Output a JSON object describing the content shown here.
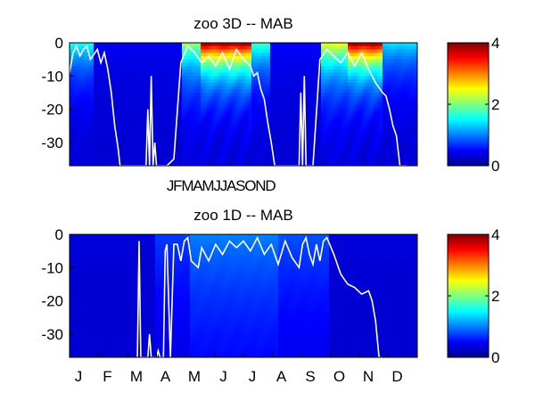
{
  "chart_data": [
    {
      "type": "heatmap",
      "title": "zoo 3D   -- MAB",
      "xlabel": "",
      "ylabel": "",
      "x_tick_labels": [
        "JFMAMJJASOND"
      ],
      "y_ticks": [
        0,
        -10,
        -20,
        -30
      ],
      "ylim": [
        -37,
        0
      ],
      "x_span_years": 2,
      "colorbar": {
        "range": [
          0,
          4
        ],
        "ticks": [
          0,
          2,
          4
        ],
        "colormap": "jet"
      },
      "heat_bands": [
        {
          "start": 0.0,
          "end": 0.07,
          "surface": 1.4,
          "decay_depth": 9
        },
        {
          "start": 0.07,
          "end": 0.32,
          "surface": 0.15,
          "decay_depth": 12
        },
        {
          "start": 0.32,
          "end": 0.38,
          "surface": 2.0,
          "decay_depth": 10
        },
        {
          "start": 0.38,
          "end": 0.52,
          "surface": 4.0,
          "decay_depth": 8
        },
        {
          "start": 0.52,
          "end": 0.58,
          "surface": 1.6,
          "decay_depth": 9
        },
        {
          "start": 0.58,
          "end": 0.72,
          "surface": 0.2,
          "decay_depth": 12
        },
        {
          "start": 0.72,
          "end": 0.8,
          "surface": 2.4,
          "decay_depth": 10
        },
        {
          "start": 0.8,
          "end": 0.9,
          "surface": 4.0,
          "decay_depth": 8
        },
        {
          "start": 0.9,
          "end": 1.0,
          "surface": 1.2,
          "decay_depth": 9
        }
      ],
      "line_series": {
        "name": "",
        "color": "#ffffff",
        "x": [
          0.0,
          0.01,
          0.02,
          0.03,
          0.04,
          0.05,
          0.06,
          0.08,
          0.09,
          0.1,
          0.11,
          0.12,
          0.13,
          0.14,
          0.145,
          0.15,
          0.22,
          0.225,
          0.23,
          0.235,
          0.24,
          0.245,
          0.25,
          0.26,
          0.27,
          0.28,
          0.3,
          0.32,
          0.34,
          0.36,
          0.38,
          0.4,
          0.42,
          0.44,
          0.46,
          0.48,
          0.5,
          0.52,
          0.53,
          0.54,
          0.55,
          0.56,
          0.57,
          0.58,
          0.59,
          0.6,
          0.61,
          0.62,
          0.63,
          0.64,
          0.65,
          0.66,
          0.665,
          0.67,
          0.675,
          0.68,
          0.69,
          0.7,
          0.72,
          0.74,
          0.76,
          0.78,
          0.8,
          0.82,
          0.84,
          0.86,
          0.88,
          0.9,
          0.91,
          0.92,
          0.93,
          0.94,
          0.95,
          0.96,
          0.97
        ],
        "y": [
          -9,
          -3,
          -1,
          -4,
          -2,
          -1,
          -5,
          -2,
          -6,
          -3,
          -8,
          -15,
          -25,
          -32,
          -37,
          -37,
          -37,
          -20,
          -37,
          -10,
          -37,
          -30,
          -37,
          -37,
          -37,
          -37,
          -35,
          -6,
          -1,
          -3,
          -6,
          -4,
          -7,
          -3,
          -8,
          -2,
          -5,
          -7,
          -10,
          -9,
          -14,
          -17,
          -24,
          -30,
          -37,
          -37,
          -37,
          -37,
          -37,
          -37,
          -37,
          -37,
          -15,
          -37,
          -10,
          -37,
          -37,
          -37,
          -5,
          -2,
          -4,
          -6,
          -3,
          -7,
          -3,
          -8,
          -12,
          -15,
          -16,
          -20,
          -25,
          -28,
          -37,
          -37,
          -37
        ]
      }
    },
    {
      "type": "heatmap",
      "title": "zoo 1D   -- MAB",
      "xlabel": "",
      "ylabel": "",
      "x_tick_labels": [
        "J",
        "F",
        "M",
        "A",
        "M",
        "J",
        "J",
        "A",
        "S",
        "O",
        "N",
        "D"
      ],
      "y_ticks": [
        0,
        -10,
        -20,
        -30
      ],
      "ylim": [
        -37,
        0
      ],
      "x_span_years": 1,
      "colorbar": {
        "range": [
          0,
          4
        ],
        "ticks": [
          0,
          2,
          4
        ],
        "colormap": "jet"
      },
      "heat_bands": [
        {
          "start": 0.0,
          "end": 0.25,
          "surface": 0.05,
          "decay_depth": 10
        },
        {
          "start": 0.25,
          "end": 0.35,
          "surface": 0.45,
          "decay_depth": 25
        },
        {
          "start": 0.35,
          "end": 0.6,
          "surface": 0.75,
          "decay_depth": 30
        },
        {
          "start": 0.6,
          "end": 0.75,
          "surface": 0.55,
          "decay_depth": 25
        },
        {
          "start": 0.75,
          "end": 1.0,
          "surface": 0.05,
          "decay_depth": 10
        }
      ],
      "line_series": {
        "name": "",
        "color": "#ffffff",
        "x": [
          0.195,
          0.2,
          0.205,
          0.21,
          0.215,
          0.225,
          0.23,
          0.235,
          0.24,
          0.25,
          0.255,
          0.26,
          0.27,
          0.275,
          0.28,
          0.29,
          0.3,
          0.31,
          0.32,
          0.33,
          0.34,
          0.35,
          0.37,
          0.38,
          0.4,
          0.42,
          0.44,
          0.46,
          0.48,
          0.5,
          0.52,
          0.54,
          0.56,
          0.58,
          0.6,
          0.62,
          0.64,
          0.66,
          0.67,
          0.68,
          0.69,
          0.7,
          0.71,
          0.72,
          0.73,
          0.74,
          0.76,
          0.78,
          0.8,
          0.82,
          0.84,
          0.86,
          0.87,
          0.88,
          0.89,
          0.9
        ],
        "y": [
          -37,
          -2,
          -37,
          -37,
          -37,
          -37,
          -30,
          -37,
          -37,
          -37,
          -35,
          -37,
          -37,
          -5,
          -3,
          -37,
          -3,
          -3,
          -8,
          -2,
          -1,
          -8,
          -10,
          -4,
          -8,
          -3,
          -6,
          -2,
          -4,
          -2,
          -5,
          -1,
          -6,
          -3,
          -9,
          -2,
          -7,
          -10,
          -3,
          -1,
          -6,
          -9,
          -3,
          -8,
          -2,
          -1,
          -6,
          -12,
          -15,
          -16,
          -18,
          -17,
          -20,
          -26,
          -37,
          -37
        ]
      }
    }
  ]
}
